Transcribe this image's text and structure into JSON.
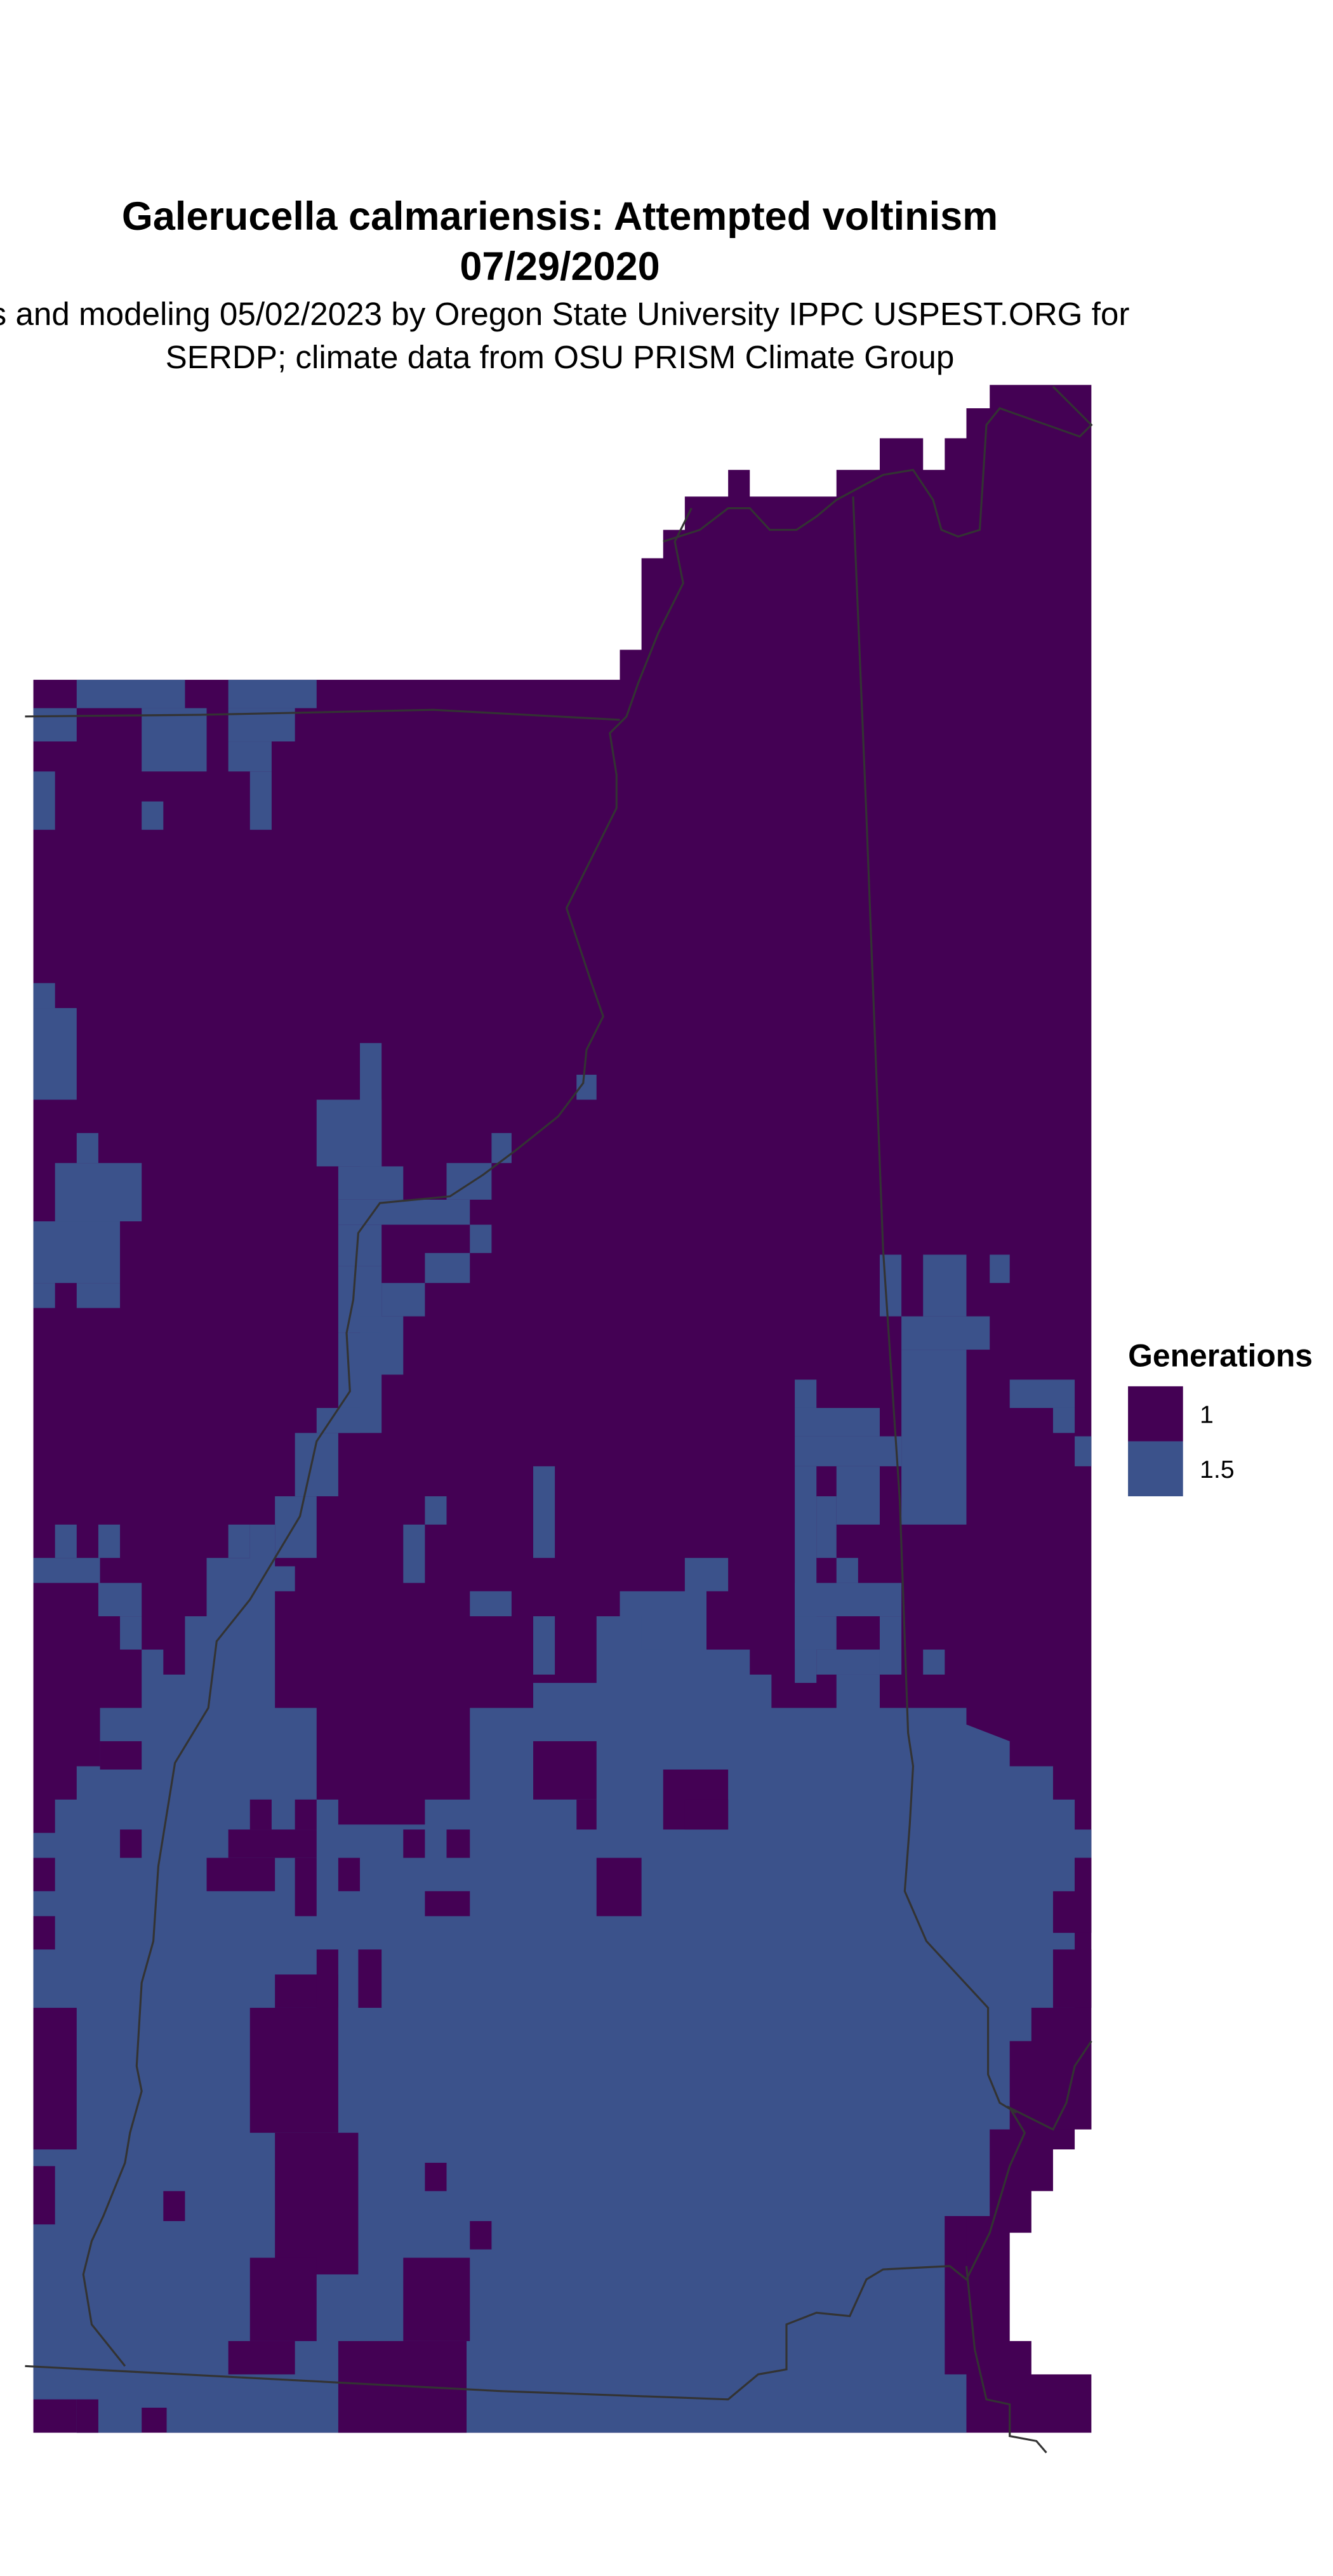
{
  "title": {
    "line1": "Galerucella calmariensis: Attempted voltinism",
    "line2": "07/29/2020"
  },
  "subtitle": {
    "line1": "s and modeling 05/02/2023 by Oregon State University IPPC USPEST.ORG for",
    "line2": "SERDP; climate data from OSU PRISM Climate Group"
  },
  "legend": {
    "title": "Generations",
    "items": [
      {
        "label": "1",
        "color": "#440154"
      },
      {
        "label": "1.5",
        "color": "#3B528B"
      }
    ]
  },
  "colors": {
    "boundary_lines": "#333333",
    "background": "#ffffff"
  }
}
